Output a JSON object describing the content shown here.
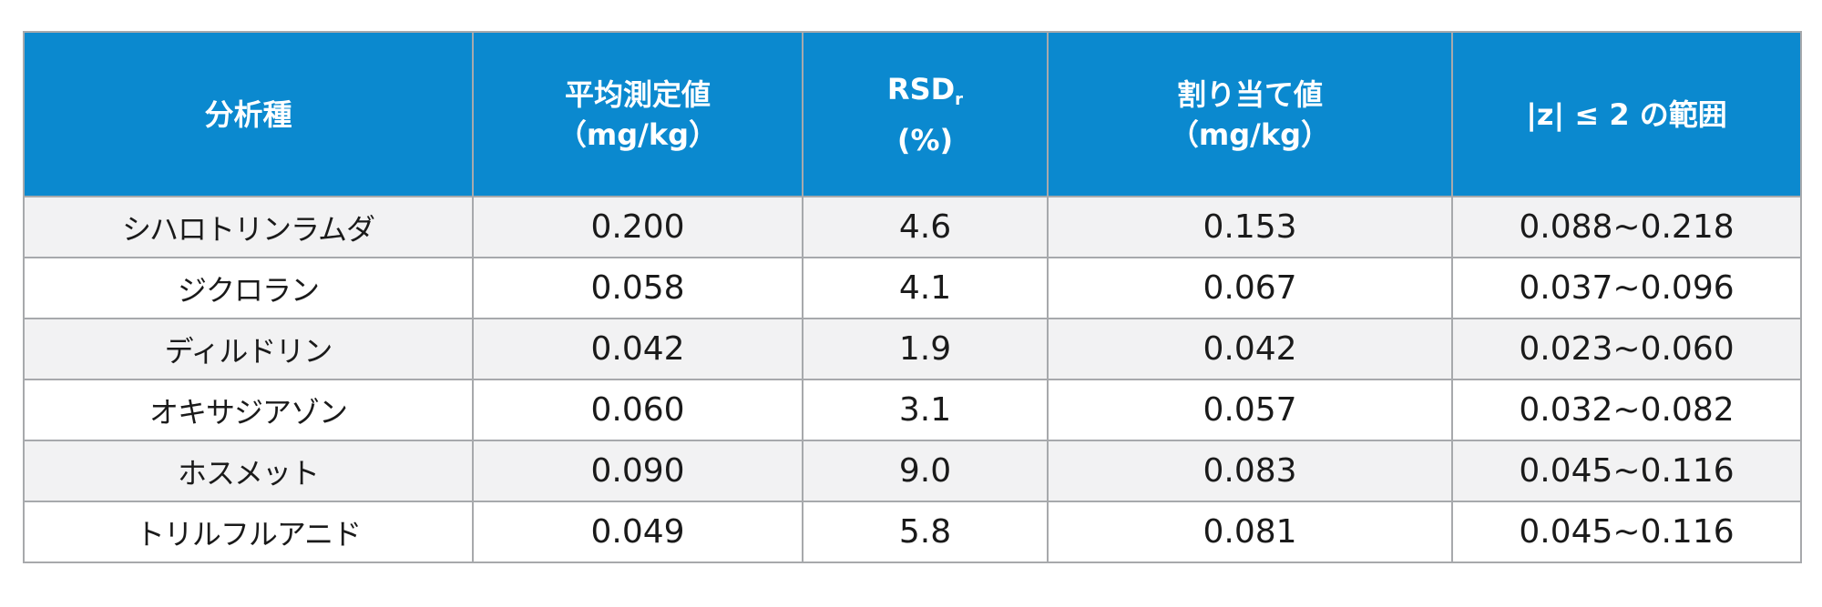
{
  "table": {
    "headers": {
      "analyte": "分析種",
      "mean_line1": "平均測定値",
      "mean_line2": "（mg/kg）",
      "rsd_main": "RSD",
      "rsd_sub": "r",
      "rsd_line2": "(%)",
      "assigned_line1": "割り当て値",
      "assigned_line2": "（mg/kg）",
      "range": "|z| ≤ 2 の範囲"
    },
    "rows": [
      {
        "analyte": "シハロトリンラムダ",
        "mean": "0.200",
        "rsd": "4.6",
        "assigned": "0.153",
        "range": "0.088~0.218"
      },
      {
        "analyte": "ジクロラン",
        "mean": "0.058",
        "rsd": "4.1",
        "assigned": "0.067",
        "range": "0.037~0.096"
      },
      {
        "analyte": "ディルドリン",
        "mean": "0.042",
        "rsd": "1.9",
        "assigned": "0.042",
        "range": "0.023~0.060"
      },
      {
        "analyte": "オキサジアゾン",
        "mean": "0.060",
        "rsd": "3.1",
        "assigned": "0.057",
        "range": "0.032~0.082"
      },
      {
        "analyte": "ホスメット",
        "mean": "0.090",
        "rsd": "9.0",
        "assigned": "0.083",
        "range": "0.045~0.116"
      },
      {
        "analyte": "トリルフルアニド",
        "mean": "0.049",
        "rsd": "5.8",
        "assigned": "0.081",
        "range": "0.045~0.116"
      }
    ]
  },
  "colors": {
    "header_bg": "#0b89cf",
    "header_text": "#ffffff",
    "row_alt_bg": "#f2f2f3",
    "border": "#a7a9ac"
  }
}
